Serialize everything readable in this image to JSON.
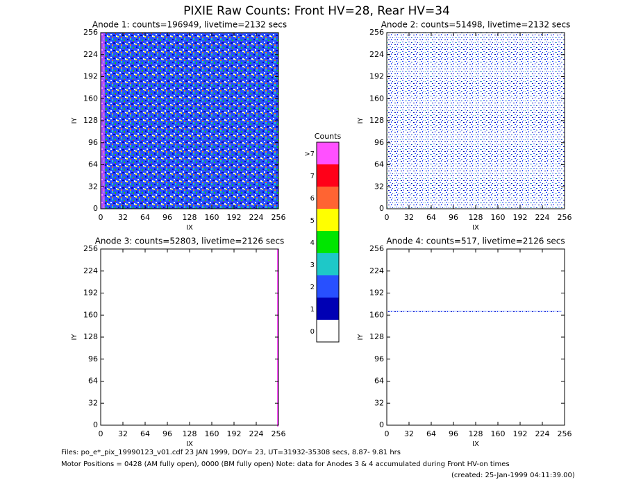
{
  "title": "PIXIE Raw Counts:  Front HV=28, Rear HV=34",
  "chart_data": [
    {
      "type": "heatmap",
      "title": "Anode 1: counts=196949, livetime=2132 secs",
      "xlabel": "IX",
      "ylabel": "IY",
      "xlim": [
        0,
        256
      ],
      "ylim": [
        0,
        256
      ],
      "xticks": [
        0,
        32,
        64,
        96,
        128,
        160,
        192,
        224,
        256
      ],
      "yticks": [
        0,
        32,
        64,
        96,
        128,
        160,
        192,
        224,
        256
      ]
    },
    {
      "type": "heatmap",
      "title": "Anode 2: counts=51498, livetime=2132 secs",
      "xlabel": "IX",
      "ylabel": "IY",
      "xlim": [
        0,
        256
      ],
      "ylim": [
        0,
        256
      ],
      "xticks": [
        0,
        32,
        64,
        96,
        128,
        160,
        192,
        224,
        256
      ],
      "yticks": [
        0,
        32,
        64,
        96,
        128,
        160,
        192,
        224,
        256
      ]
    },
    {
      "type": "heatmap",
      "title": "Anode 3: counts=52803, livetime=2126 secs",
      "xlabel": "IX",
      "ylabel": "IY",
      "xlim": [
        0,
        256
      ],
      "ylim": [
        0,
        256
      ],
      "xticks": [
        0,
        32,
        64,
        96,
        128,
        160,
        192,
        224,
        256
      ],
      "yticks": [
        0,
        32,
        64,
        96,
        128,
        160,
        192,
        224,
        256
      ]
    },
    {
      "type": "heatmap",
      "title": "Anode 4: counts=517, livetime=2126 secs",
      "xlabel": "IX",
      "ylabel": "IY",
      "xlim": [
        0,
        256
      ],
      "ylim": [
        0,
        256
      ],
      "xticks": [
        0,
        32,
        64,
        96,
        128,
        160,
        192,
        224,
        256
      ],
      "yticks": [
        0,
        32,
        64,
        96,
        128,
        160,
        192,
        224,
        256
      ]
    }
  ],
  "colorbar": {
    "title": "Counts",
    "labels": [
      "0",
      "1",
      "2",
      "3",
      "4",
      "5",
      "6",
      "7",
      ">7"
    ],
    "colors": [
      "#ffffff",
      "#0000b4",
      "#2850ff",
      "#1ec8c8",
      "#00e600",
      "#ffff00",
      "#ff6432",
      "#ff0018",
      "#ff50ff"
    ]
  },
  "footer": {
    "files": "Files: po_e*_pix_19990123_v01.cdf    23 JAN 1999, DOY= 23, UT=31932-35308 secs,  8.87- 9.81 hrs",
    "motor": "Motor Positions = 0428 (AM fully open), 0000 (BM fully open)    Note: data for Anodes 3 & 4 accumulated during Front HV-on times",
    "created": "(created: 25-Jan-1999 04:11:39.00)"
  }
}
